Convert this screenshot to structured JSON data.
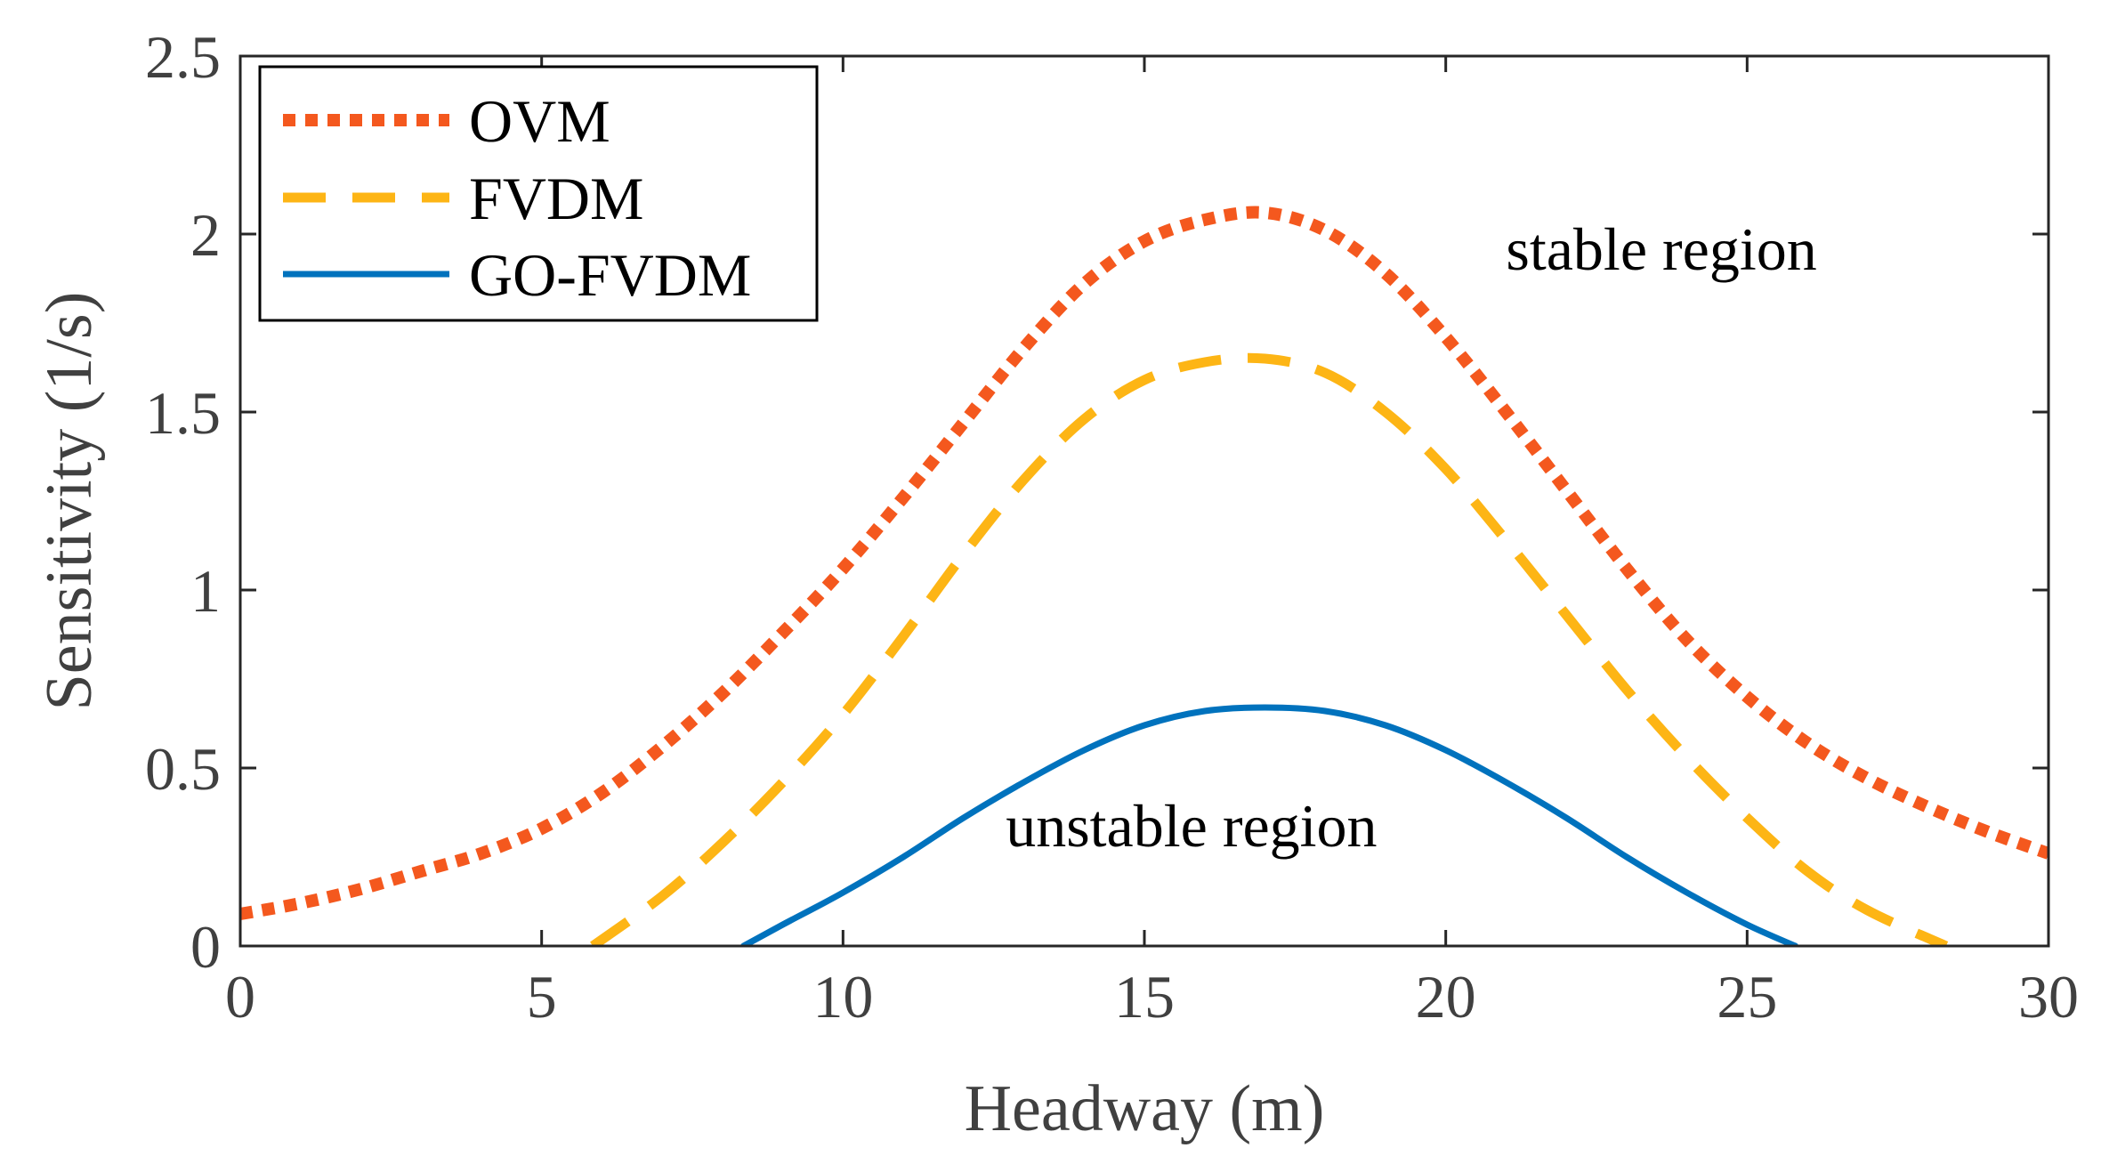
{
  "chart_data": {
    "type": "line",
    "title": "",
    "xlabel": "Headway (m)",
    "ylabel": "Sensitivity (1/s)",
    "xlim": [
      0,
      30
    ],
    "ylim": [
      0,
      2.5
    ],
    "xticks": [
      0,
      5,
      10,
      15,
      20,
      25,
      30
    ],
    "yticks": [
      0,
      0.5,
      1,
      1.5,
      2,
      2.5
    ],
    "xtick_labels": [
      "0",
      "5",
      "10",
      "15",
      "20",
      "25",
      "30"
    ],
    "ytick_labels": [
      "0",
      "0.5",
      "1",
      "1.5",
      "2",
      "2.5"
    ],
    "grid": false,
    "legend_position": "top-left",
    "series": [
      {
        "name": "OVM",
        "color": "#F4581E",
        "style": "dotted",
        "x": [
          0,
          1,
          2,
          3,
          4,
          5,
          6,
          7,
          8,
          9,
          10,
          11,
          12,
          13,
          14,
          15,
          16,
          17,
          18,
          19,
          20,
          21,
          22,
          23,
          24,
          25,
          26,
          27,
          28,
          29,
          30
        ],
        "y": [
          0.09,
          0.12,
          0.16,
          0.21,
          0.26,
          0.33,
          0.43,
          0.56,
          0.71,
          0.88,
          1.06,
          1.26,
          1.47,
          1.68,
          1.86,
          1.98,
          2.04,
          2.06,
          2.01,
          1.89,
          1.71,
          1.5,
          1.28,
          1.06,
          0.86,
          0.7,
          0.57,
          0.47,
          0.39,
          0.32,
          0.26
        ]
      },
      {
        "name": "FVDM",
        "color": "#FDB515",
        "style": "dashed",
        "x": [
          5.85,
          7,
          8,
          9,
          10,
          11,
          12,
          13,
          14,
          15,
          16,
          17,
          18,
          19,
          20,
          21,
          22,
          23,
          24,
          25,
          26,
          27,
          28.3
        ],
        "y": [
          0,
          0.14,
          0.29,
          0.46,
          0.65,
          0.87,
          1.1,
          1.31,
          1.48,
          1.59,
          1.64,
          1.65,
          1.61,
          1.5,
          1.34,
          1.14,
          0.93,
          0.72,
          0.53,
          0.36,
          0.21,
          0.1,
          0
        ]
      },
      {
        "name": "GO-FVDM",
        "color": "#0072BD",
        "style": "solid",
        "x": [
          8.35,
          9,
          10,
          11,
          12,
          13,
          14,
          15,
          16,
          17,
          18,
          19,
          20,
          21,
          22,
          23,
          24,
          25,
          25.8
        ],
        "y": [
          0,
          0.06,
          0.15,
          0.25,
          0.36,
          0.46,
          0.55,
          0.62,
          0.66,
          0.67,
          0.66,
          0.62,
          0.55,
          0.46,
          0.36,
          0.25,
          0.15,
          0.06,
          0
        ]
      }
    ],
    "annotations": [
      {
        "text": "stable region",
        "x": 21.0,
        "y": 1.9
      },
      {
        "text": "unstable region",
        "x": 12.7,
        "y": 0.28
      }
    ]
  }
}
